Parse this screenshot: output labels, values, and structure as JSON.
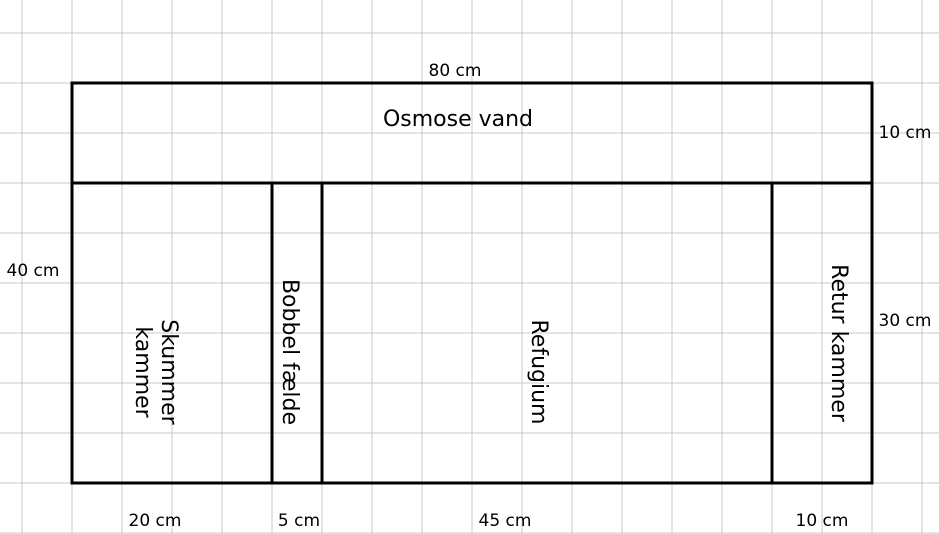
{
  "title": "Osmose vand",
  "dimensions": {
    "total_width": "80 cm",
    "top_height": "10 cm",
    "total_height": "40 cm",
    "bottom_height": "30 cm"
  },
  "compartments": [
    {
      "label": [
        "Skummer",
        "kammer"
      ],
      "width": "20 cm"
    },
    {
      "label": [
        "Bobbel fælde"
      ],
      "width": "5 cm"
    },
    {
      "label": [
        "Refugium"
      ],
      "width": "45 cm"
    },
    {
      "label": [
        "Retur kammer"
      ],
      "width": "10 cm"
    }
  ]
}
